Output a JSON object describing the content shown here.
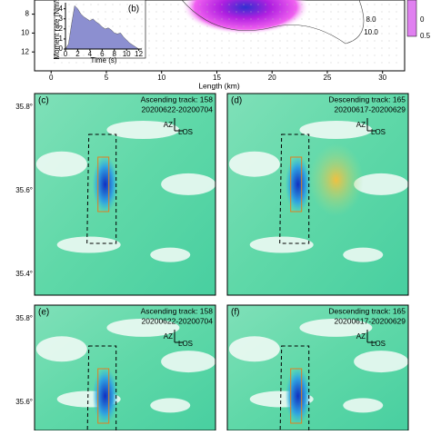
{
  "slip_panel": {
    "x_label": "Length (km)",
    "xlim": [
      -1.5,
      32
    ],
    "xticks": [
      0,
      5,
      10,
      15,
      20,
      25,
      30
    ],
    "ylim": [
      6.5,
      14
    ],
    "yticks": [
      8,
      10,
      12
    ],
    "depth_labels": [
      "8.0",
      "10.0"
    ],
    "colorbar_ticks": [
      "0.5",
      "0"
    ]
  },
  "chart_data": {
    "type": "area",
    "label": "(b)",
    "x_label": "Time (s)",
    "y_label": "Moment rate (Nm/s)",
    "color": "#8c8fd0",
    "x": [
      0,
      0.5,
      1,
      1.5,
      2,
      2.5,
      3,
      3.5,
      4,
      4.5,
      5,
      5.5,
      6,
      6.5,
      7,
      7.5,
      8,
      8.5,
      9,
      9.5,
      10,
      10.5,
      11,
      11.5,
      12
    ],
    "values": [
      0,
      0.5,
      2.5,
      4.3,
      4.0,
      3.5,
      3.2,
      3.0,
      2.8,
      3.0,
      2.7,
      2.5,
      2.2,
      2.0,
      2.1,
      1.9,
      1.6,
      1.5,
      1.6,
      1.2,
      0.9,
      0.6,
      0.4,
      0.2,
      0
    ],
    "xlim": [
      0,
      12.5
    ],
    "ylim": [
      0,
      4.6
    ],
    "xticks": [
      0,
      2,
      4,
      6,
      8,
      10,
      12
    ],
    "yticks": [
      0,
      1,
      2,
      3,
      4
    ]
  },
  "maps": [
    {
      "label": "(c)",
      "track": "Ascending track: 158",
      "dates": "20200622-20200704",
      "az": "AZ",
      "los": "LOS",
      "lat_labels": [
        "35.8°",
        "35.6°",
        "35.4°"
      ]
    },
    {
      "label": "(d)",
      "track": "Descending track: 165",
      "dates": "20200617-20200629",
      "az": "AZ",
      "los": "LOS"
    },
    {
      "label": "(e)",
      "track": "Ascending track: 158",
      "dates": "20200622-20200704",
      "az": "AZ",
      "los": "LOS",
      "lat_labels": [
        "35.8°",
        "35.6°"
      ]
    },
    {
      "label": "(f)",
      "track": "Descending track: 165",
      "dates": "20200617-20200629",
      "az": "AZ",
      "los": "LOS"
    }
  ]
}
